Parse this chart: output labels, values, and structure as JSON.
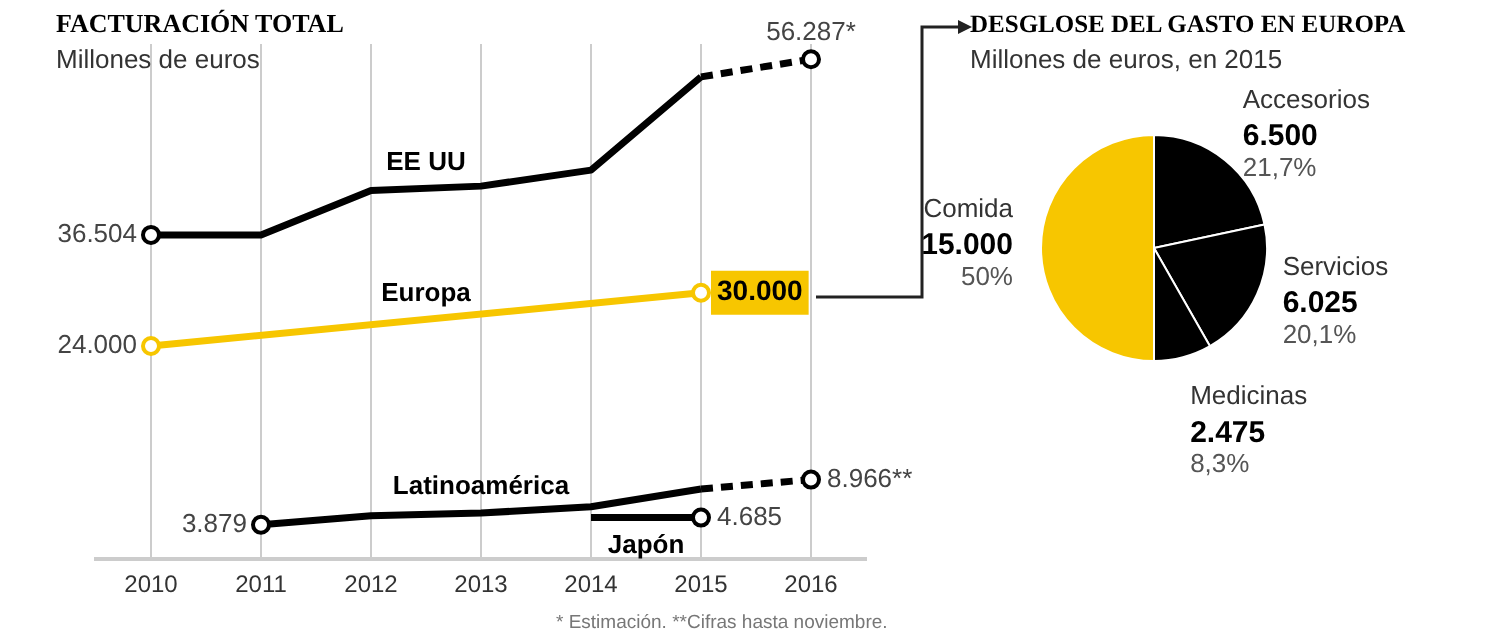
{
  "chart_data": [
    {
      "type": "line",
      "title": "FACTURACIÓN TOTAL",
      "subtitle": "Millones de euros",
      "categories": [
        "2010",
        "2011",
        "2012",
        "2013",
        "2014",
        "2015",
        "2016"
      ],
      "ylim": [
        0,
        58000
      ],
      "tick_labels": "x",
      "grid": "x",
      "annotations": [
        "* Estimación. **Cifras hasta noviembre."
      ],
      "series": [
        {
          "name": "EE UU",
          "color": "#000000",
          "line_style": "solid",
          "values": [
            36504,
            36504,
            41500,
            42000,
            43800,
            54300,
            null
          ],
          "value_labels": [
            "36.504",
            null,
            null,
            null,
            null,
            null,
            null
          ]
        },
        {
          "color": "#000000",
          "line_style": "dashed",
          "values": [
            null,
            null,
            null,
            null,
            null,
            54300,
            56287
          ],
          "value_labels": [
            null,
            null,
            null,
            null,
            null,
            null,
            "56.287*"
          ]
        },
        {
          "name": "Europa",
          "color": "#f7c600",
          "line_style": "solid",
          "marker": "circle",
          "values": [
            24000,
            null,
            null,
            null,
            null,
            30000,
            null
          ],
          "value_labels": [
            "24.000",
            null,
            null,
            null,
            null,
            "30.000",
            null
          ]
        },
        {
          "name": "Latinoamérica",
          "color": "#000000",
          "line_style": "solid",
          "values": [
            null,
            3879,
            4900,
            5200,
            5900,
            7900,
            null
          ],
          "value_labels": [
            null,
            "3.879",
            null,
            null,
            null,
            null,
            null
          ]
        },
        {
          "color": "#000000",
          "line_style": "dashed",
          "values": [
            null,
            null,
            null,
            null,
            null,
            7900,
            8966
          ],
          "value_labels": [
            null,
            null,
            null,
            null,
            null,
            null,
            "8.966**"
          ]
        },
        {
          "name": "Japón",
          "color": "#000000",
          "line_style": "solid",
          "values": [
            null,
            null,
            null,
            null,
            4685,
            4685,
            null
          ],
          "value_labels": [
            null,
            null,
            null,
            null,
            null,
            "4.685",
            null
          ]
        }
      ]
    },
    {
      "type": "pie",
      "title": "DESGLOSE DEL GASTO EN EUROPA",
      "subtitle": "Millones de euros, en 2015",
      "categories": [
        "Accesorios",
        "Servicios",
        "Medicinas",
        "Comida"
      ],
      "values": [
        6500,
        6025,
        2475,
        15000
      ],
      "colors": [
        "#000000",
        "#000000",
        "#000000",
        "#f7c600"
      ],
      "value_labels": [
        "6.500",
        "6.025",
        "2.475",
        "15.000"
      ],
      "annotations": [
        "21,7%",
        "20,1%",
        "8,3%",
        "50%"
      ]
    }
  ]
}
